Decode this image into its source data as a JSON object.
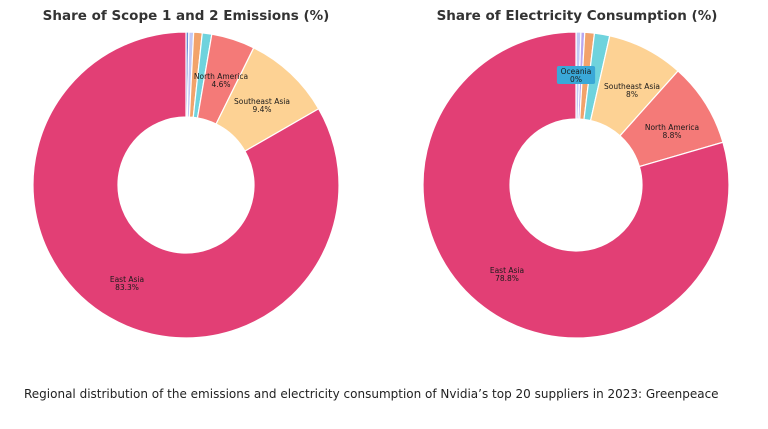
{
  "chart_data": [
    {
      "type": "pie",
      "title": "Share of Scope 1 and 2 Emissions (%)",
      "slices": [
        {
          "label": "",
          "value": 0.3,
          "color": "#6a8ad8",
          "show_label": false
        },
        {
          "label": "",
          "value": 0.5,
          "color": "#c2c8f5",
          "show_label": false
        },
        {
          "label": "",
          "value": 0.9,
          "color": "#f2a36b",
          "show_label": false
        },
        {
          "label": "",
          "value": 1.0,
          "color": "#6fd3dd",
          "show_label": false
        },
        {
          "label": "North America",
          "value": 4.6,
          "value_label": "4.6%",
          "color": "#f47a78",
          "show_label": true
        },
        {
          "label": "Southeast Asia",
          "value": 9.4,
          "value_label": "9.4%",
          "color": "#fdd294",
          "show_label": true
        },
        {
          "label": "East Asia",
          "value": 83.3,
          "value_label": "83.3%",
          "color": "#e23f75",
          "show_label": true
        }
      ]
    },
    {
      "type": "pie",
      "title": "Share of Electricity Consumption (%)",
      "slices": [
        {
          "label": "Oceania",
          "value": 0.01,
          "value_label": "0%",
          "color": "#5a8fd6",
          "show_label": true,
          "highlight": true
        },
        {
          "label": "",
          "value": 0.5,
          "color": "#c2c8f5",
          "show_label": false
        },
        {
          "label": "",
          "value": 0.4,
          "color": "#b9a7f0",
          "show_label": false
        },
        {
          "label": "",
          "value": 1.0,
          "color": "#f2a36b",
          "show_label": false
        },
        {
          "label": "",
          "value": 1.6,
          "color": "#6fd3dd",
          "show_label": false
        },
        {
          "label": "Southeast Asia",
          "value": 8.0,
          "value_label": "8%",
          "color": "#fdd294",
          "show_label": true
        },
        {
          "label": "North America",
          "value": 8.8,
          "value_label": "8.8%",
          "color": "#f47a78",
          "show_label": true
        },
        {
          "label": "East Asia",
          "value": 78.8,
          "value_label": "78.8%",
          "color": "#e23f75",
          "show_label": true
        }
      ]
    }
  ],
  "caption": "Regional distribution of the emissions and electricity consumption of Nvidia’s top 20 suppliers in 2023: Greenpeace"
}
